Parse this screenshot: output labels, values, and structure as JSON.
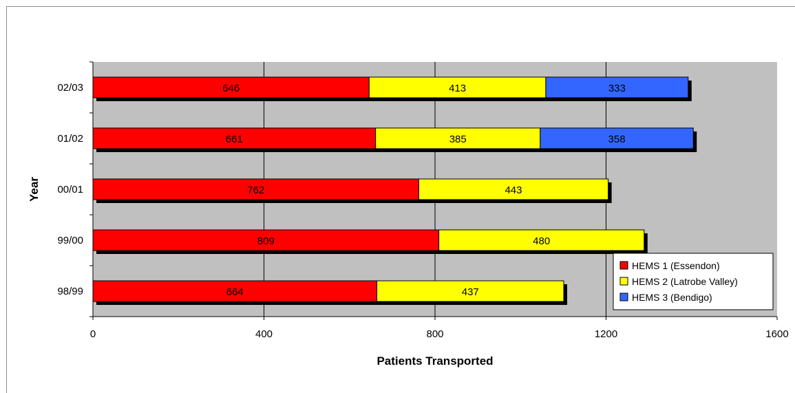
{
  "chart_data": {
    "type": "bar",
    "orientation": "horizontal",
    "stacked": true,
    "categories": [
      "98/99",
      "99/00",
      "00/01",
      "01/02",
      "02/03"
    ],
    "series": [
      {
        "name": "HEMS 1 (Essendon)",
        "color": "#ff0000",
        "values": [
          664,
          809,
          762,
          661,
          646
        ]
      },
      {
        "name": "HEMS 2 (Latrobe Valley)",
        "color": "#ffff00",
        "values": [
          437,
          480,
          443,
          385,
          413
        ]
      },
      {
        "name": "HEMS 3 (Bendigo)",
        "color": "#3366ff",
        "values": [
          null,
          null,
          null,
          358,
          333
        ]
      }
    ],
    "xlabel": "Patients Transported",
    "ylabel": "Year",
    "xlim": [
      0,
      1600
    ],
    "xticks": [
      0,
      400,
      800,
      1200,
      1600
    ],
    "grid": true,
    "plot_background": "#c0c0c0",
    "legend_position": "bottom-right"
  }
}
